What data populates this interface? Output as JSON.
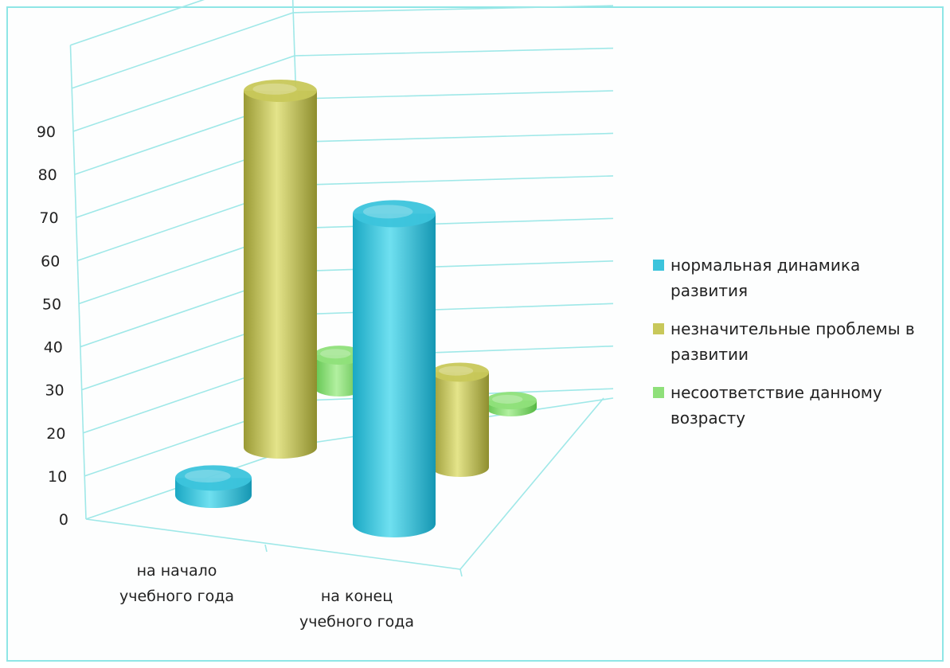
{
  "chart_data": {
    "type": "bar",
    "style": "3d-cylinder",
    "categories": [
      "на начало учебного года",
      "на конец учебного года"
    ],
    "category_lines": [
      [
        "на начало",
        "учебного года"
      ],
      [
        "на конец",
        "учебного года"
      ]
    ],
    "series": [
      {
        "name": "нормальная динамика развития",
        "legend_lines": [
          "нормальная динамика",
          "развития"
        ],
        "values": [
          4,
          72
        ],
        "color": "#3cc4dc"
      },
      {
        "name": "незначительные проблемы в развитии",
        "legend_lines": [
          "незначительные проблемы в",
          "развитии"
        ],
        "values": [
          90,
          24
        ],
        "color": "#c8c85a"
      },
      {
        "name": "несоответствие данному возрасту",
        "legend_lines": [
          "несоответствие данному",
          "возрасту"
        ],
        "values": [
          9,
          2
        ],
        "color": "#8fe07a"
      }
    ],
    "yticks": [
      0,
      10,
      20,
      30,
      40,
      50,
      60,
      70,
      80,
      90
    ],
    "ylim": [
      0,
      90
    ],
    "grid": true,
    "legend": "right"
  }
}
